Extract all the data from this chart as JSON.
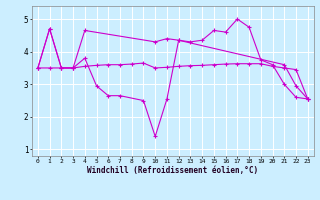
{
  "xlabel": "Windchill (Refroidissement éolien,°C)",
  "background_color": "#cceeff",
  "line_color": "#cc00cc",
  "xlim": [
    -0.5,
    23.5
  ],
  "ylim": [
    0.8,
    5.4
  ],
  "yticks": [
    1,
    2,
    3,
    4,
    5
  ],
  "xticks": [
    0,
    1,
    2,
    3,
    4,
    5,
    6,
    7,
    8,
    9,
    10,
    11,
    12,
    13,
    14,
    15,
    16,
    17,
    18,
    19,
    20,
    21,
    22,
    23
  ],
  "series": [
    {
      "x": [
        0,
        1,
        2,
        3,
        4,
        10,
        11,
        12,
        13,
        14,
        15,
        16,
        17,
        18,
        19,
        20,
        21,
        22,
        23
      ],
      "y": [
        3.5,
        4.7,
        3.5,
        3.5,
        4.65,
        4.3,
        4.4,
        4.35,
        4.3,
        4.35,
        4.65,
        4.6,
        5.0,
        4.75,
        3.75,
        3.6,
        3.0,
        2.6,
        2.55
      ]
    },
    {
      "x": [
        0,
        1,
        2,
        3,
        4,
        5,
        6,
        7,
        9,
        10,
        11,
        12,
        21,
        22,
        23
      ],
      "y": [
        3.5,
        4.7,
        3.5,
        3.5,
        3.8,
        2.95,
        2.65,
        2.65,
        2.5,
        1.4,
        2.55,
        4.35,
        3.6,
        2.95,
        2.55
      ]
    },
    {
      "x": [
        0,
        1,
        2,
        3,
        4,
        5,
        6,
        7,
        8,
        9,
        10,
        11,
        12,
        13,
        14,
        15,
        16,
        17,
        18,
        19,
        20,
        21,
        22,
        23
      ],
      "y": [
        3.5,
        3.5,
        3.5,
        3.5,
        3.55,
        3.58,
        3.6,
        3.6,
        3.62,
        3.65,
        3.5,
        3.52,
        3.55,
        3.57,
        3.58,
        3.6,
        3.62,
        3.63,
        3.63,
        3.63,
        3.55,
        3.5,
        3.45,
        2.55
      ]
    }
  ]
}
